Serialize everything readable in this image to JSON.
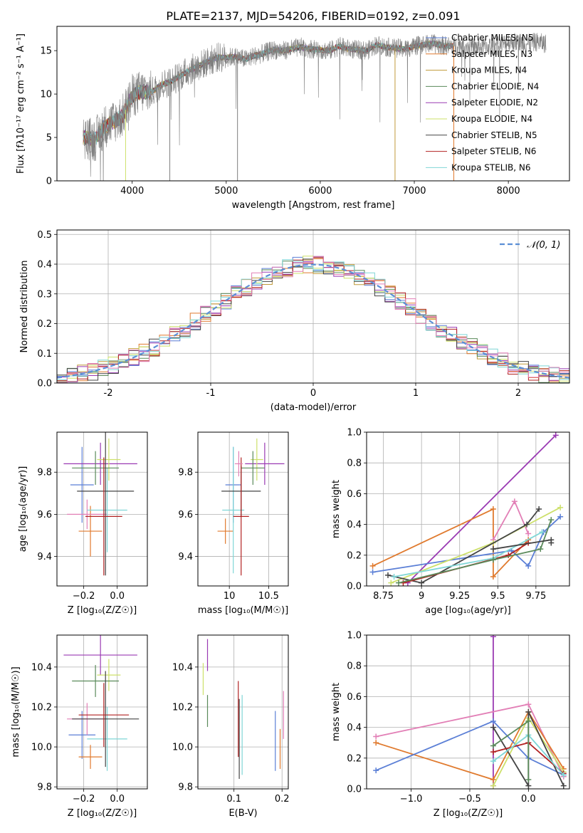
{
  "figure_title": "PLATE=2137, MJD=54206, FIBERID=0192, z=0.091",
  "colors": {
    "chabrier_miles": "#5b7fd6",
    "salpeter_miles": "#e07a2e",
    "kroupa_miles": "#c09a3a",
    "chabrier_elodie": "#5a8a5a",
    "salpeter_elodie": "#9a3ab3",
    "kroupa_elodie": "#cde06a",
    "chabrier_stelib": "#444444",
    "salpeter_stelib": "#b22222",
    "kroupa_stelib": "#7fd6d6",
    "normal_curve": "#5b8fd6",
    "data_spectrum": "#808080",
    "pink": "#e27fb6"
  },
  "chart_data": [
    {
      "id": "spectrum",
      "type": "line",
      "xlabel": "wavelength [Angstrom, rest frame]",
      "ylabel": "Flux [fλ10⁻¹⁷ erg cm⁻² s⁻¹ A⁻¹]",
      "xlim": [
        3200,
        8650
      ],
      "ylim": [
        0,
        17.8
      ],
      "xticks": [
        4000,
        5000,
        6000,
        7000,
        8000
      ],
      "yticks": [
        0,
        5,
        10,
        15
      ],
      "grid": false,
      "legend_position": "top-right",
      "legend": [
        "Chabrier MILES, N_SSP=5",
        "Salpeter MILES, N_SSP=3",
        "Kroupa MILES, N_SSP=4",
        "Chabrier ELODIE, N_SSP=4",
        "Salpeter ELODIE, N_SSP=2",
        "Kroupa ELODIE, N_SSP=4",
        "Chabrier STELIB, N_SSP=5",
        "Salpeter STELIB, N_SSP=6",
        "Kroupa STELIB, N_SSP=6"
      ],
      "data_anchor_points": [
        [
          3500,
          5.0
        ],
        [
          3600,
          4.7
        ],
        [
          3700,
          6.2
        ],
        [
          3800,
          6.8
        ],
        [
          3900,
          7.5
        ],
        [
          4000,
          9.8
        ],
        [
          4100,
          10.3
        ],
        [
          4200,
          10.2
        ],
        [
          4300,
          11.0
        ],
        [
          4400,
          11.4
        ],
        [
          4500,
          12.0
        ],
        [
          4600,
          12.7
        ],
        [
          4700,
          13.2
        ],
        [
          4800,
          13.7
        ],
        [
          4900,
          14.2
        ],
        [
          5000,
          14.2
        ],
        [
          5100,
          14.3
        ],
        [
          5200,
          14.0
        ],
        [
          5300,
          14.4
        ],
        [
          5400,
          14.7
        ],
        [
          5500,
          15.1
        ],
        [
          5600,
          15.0
        ],
        [
          5700,
          15.2
        ],
        [
          5800,
          15.4
        ],
        [
          5900,
          15.2
        ],
        [
          6000,
          15.1
        ],
        [
          6100,
          15.0
        ],
        [
          6200,
          15.5
        ],
        [
          6300,
          15.2
        ],
        [
          6400,
          15.1
        ],
        [
          6500,
          15.0
        ],
        [
          6600,
          15.7
        ],
        [
          6700,
          15.4
        ],
        [
          6800,
          15.3
        ],
        [
          6900,
          15.2
        ],
        [
          7000,
          15.5
        ],
        [
          7100,
          15.7
        ],
        [
          7200,
          15.8
        ],
        [
          7300,
          15.6
        ],
        [
          7400,
          15.5
        ],
        [
          7500,
          15.7
        ],
        [
          7600,
          15.4
        ],
        [
          7700,
          15.4
        ],
        [
          7800,
          15.5
        ],
        [
          7900,
          15.6
        ],
        [
          8000,
          16.0
        ],
        [
          8100,
          16.0
        ],
        [
          8200,
          15.8
        ],
        [
          8300,
          16.0
        ],
        [
          8400,
          15.8
        ]
      ]
    },
    {
      "id": "residuals",
      "type": "histogram",
      "xlabel": "(data-model)/error",
      "ylabel": "Normed distribution",
      "xlim": [
        -2.5,
        2.5
      ],
      "ylim": [
        0,
        0.515
      ],
      "xticks": [
        -2,
        -1,
        0,
        1,
        2
      ],
      "yticks": [
        0.0,
        0.1,
        0.2,
        0.3,
        0.4,
        0.5
      ],
      "grid": true,
      "legend_position": "top-right",
      "legend": [
        "𝒩(0, 1)"
      ],
      "bin_width": 0.1,
      "bin_start": -2.5,
      "normal_curve": {
        "mean": 0,
        "sigma": 1
      }
    },
    {
      "id": "age-vs-Z",
      "type": "errorbar",
      "xlabel": "Z [log₁₀(Z/Z☉)]",
      "ylabel": "age  [log₁₀(age/yr)]",
      "xlim": [
        -0.36,
        0.18
      ],
      "ylim": [
        9.26,
        9.99
      ],
      "xticks": [
        -0.2,
        0.0
      ],
      "xticklabels": [
        "−0.2",
        "0.0"
      ],
      "yticks": [
        9.4,
        9.6,
        9.8
      ],
      "grid": true,
      "points": [
        {
          "x": -0.21,
          "y": 9.74,
          "xerr": 0.07,
          "yerr": 0.18,
          "c": "chabrier_miles"
        },
        {
          "x": -0.16,
          "y": 9.52,
          "xerr": 0.07,
          "yerr": 0.12,
          "c": "salpeter_miles"
        },
        {
          "x": -0.18,
          "y": 9.6,
          "xerr": 0.12,
          "yerr": 0.07,
          "c": "pink"
        },
        {
          "x": -0.06,
          "y": 9.62,
          "xerr": 0.12,
          "yerr": 0.2,
          "c": "kroupa_stelib"
        },
        {
          "x": -0.1,
          "y": 9.84,
          "xerr": 0.22,
          "yerr": 0.1,
          "c": "salpeter_elodie"
        },
        {
          "x": -0.05,
          "y": 9.86,
          "xerr": 0.07,
          "yerr": 0.1,
          "c": "kroupa_elodie"
        },
        {
          "x": -0.13,
          "y": 9.82,
          "xerr": 0.14,
          "yerr": 0.08,
          "c": "chabrier_elodie"
        },
        {
          "x": -0.07,
          "y": 9.71,
          "xerr": 0.17,
          "yerr": 0.4,
          "c": "chabrier_stelib"
        },
        {
          "x": -0.08,
          "y": 9.59,
          "xerr": 0.11,
          "yerr": 0.28,
          "c": "salpeter_stelib"
        }
      ]
    },
    {
      "id": "age-vs-mass",
      "type": "errorbar",
      "xlabel": "mass [log₁₀(M/M☉)]",
      "ylabel": "",
      "xlim": [
        9.6,
        10.75
      ],
      "ylim": [
        9.26,
        9.99
      ],
      "xticks": [
        10.0,
        10.5
      ],
      "yticks": [
        9.4,
        9.6,
        9.8
      ],
      "grid": true,
      "points": [
        {
          "x": 10.05,
          "y": 9.74,
          "xerr": 0.1,
          "yerr": 0.18,
          "c": "chabrier_miles"
        },
        {
          "x": 9.95,
          "y": 9.52,
          "xerr": 0.1,
          "yerr": 0.06,
          "c": "salpeter_miles"
        },
        {
          "x": 10.05,
          "y": 9.62,
          "xerr": 0.14,
          "yerr": 0.3,
          "c": "kroupa_stelib"
        },
        {
          "x": 10.45,
          "y": 9.84,
          "xerr": 0.25,
          "yerr": 0.1,
          "c": "salpeter_elodie"
        },
        {
          "x": 10.35,
          "y": 9.86,
          "xerr": 0.08,
          "yerr": 0.1,
          "c": "kroupa_elodie"
        },
        {
          "x": 10.3,
          "y": 9.82,
          "xerr": 0.15,
          "yerr": 0.08,
          "c": "chabrier_elodie"
        },
        {
          "x": 10.15,
          "y": 9.71,
          "xerr": 0.25,
          "yerr": 0.12,
          "c": "chabrier_stelib"
        },
        {
          "x": 10.15,
          "y": 9.59,
          "xerr": 0.1,
          "yerr": 0.28,
          "c": "salpeter_stelib"
        },
        {
          "x": 10.12,
          "y": 9.84,
          "xerr": 0.05,
          "yerr": 0.06,
          "c": "pink"
        }
      ]
    },
    {
      "id": "massweight-vs-age",
      "type": "line",
      "xlabel": "age  [log₁₀(age/yr)]",
      "ylabel": "mass weight",
      "xlim": [
        8.64,
        9.97
      ],
      "ylim": [
        0,
        1.0
      ],
      "xticks": [
        8.75,
        9.0,
        9.25,
        9.5,
        9.75
      ],
      "yticks": [
        0.0,
        0.2,
        0.4,
        0.6,
        0.8,
        1.0
      ],
      "grid": true,
      "series": [
        {
          "c": "salpeter_elodie",
          "x": [
            8.91,
            9.88
          ],
          "y": [
            0.02,
            0.98
          ]
        },
        {
          "c": "salpeter_miles",
          "x": [
            8.68,
            9.47,
            9.47,
            9.7
          ],
          "y": [
            0.13,
            0.5,
            0.06,
            0.3
          ]
        },
        {
          "c": "pink",
          "x": [
            9.47,
            9.61,
            9.7
          ],
          "y": [
            0.3,
            0.55,
            0.34
          ]
        },
        {
          "c": "chabrier_miles",
          "x": [
            8.68,
            9.59,
            9.7,
            9.8,
            9.91
          ],
          "y": [
            0.09,
            0.23,
            0.13,
            0.35,
            0.45
          ]
        },
        {
          "c": "kroupa_elodie",
          "x": [
            8.8,
            9.47,
            9.91
          ],
          "y": [
            0.02,
            0.28,
            0.51
          ]
        },
        {
          "c": "chabrier_stelib",
          "x": [
            8.78,
            9.0,
            9.69,
            9.77
          ],
          "y": [
            0.07,
            0.02,
            0.4,
            0.5
          ]
        },
        {
          "c": "salpeter_stelib",
          "x": [
            8.88,
            9.57,
            9.7
          ],
          "y": [
            0.02,
            0.2,
            0.28
          ]
        },
        {
          "c": "kroupa_stelib",
          "x": [
            8.82,
            9.47,
            9.79
          ],
          "y": [
            0.06,
            0.18,
            0.35
          ]
        },
        {
          "c": "chabrier_elodie",
          "x": [
            8.85,
            9.47,
            9.78,
            9.85
          ],
          "y": [
            0.02,
            0.17,
            0.24,
            0.43
          ]
        },
        {
          "c": "chabrier_stelib",
          "x": [
            9.47,
            9.85,
            9.85
          ],
          "y": [
            0.24,
            0.3,
            0.28
          ]
        }
      ]
    },
    {
      "id": "mass-vs-Z",
      "type": "errorbar",
      "xlabel": "Z [log₁₀(Z/Z☉)]",
      "ylabel": "mass [log₁₀(M/M☉)]",
      "xlim": [
        -0.36,
        0.18
      ],
      "ylim": [
        9.79,
        10.56
      ],
      "xticks": [
        -0.2,
        0.0
      ],
      "xticklabels": [
        "−0.2",
        "0.0"
      ],
      "yticks": [
        9.8,
        10.0,
        10.2,
        10.4
      ],
      "grid": true,
      "points": [
        {
          "x": -0.21,
          "y": 10.06,
          "xerr": 0.08,
          "yerr": 0.12,
          "c": "chabrier_miles"
        },
        {
          "x": -0.16,
          "y": 9.95,
          "xerr": 0.07,
          "yerr": 0.06,
          "c": "salpeter_miles"
        },
        {
          "x": -0.18,
          "y": 10.14,
          "xerr": 0.12,
          "yerr": 0.08,
          "c": "pink"
        },
        {
          "x": -0.06,
          "y": 10.04,
          "xerr": 0.12,
          "yerr": 0.16,
          "c": "kroupa_stelib"
        },
        {
          "x": -0.1,
          "y": 10.46,
          "xerr": 0.22,
          "yerr": 0.1,
          "c": "salpeter_elodie"
        },
        {
          "x": -0.05,
          "y": 10.36,
          "xerr": 0.07,
          "yerr": 0.08,
          "c": "kroupa_elodie"
        },
        {
          "x": -0.13,
          "y": 10.33,
          "xerr": 0.14,
          "yerr": 0.08,
          "c": "chabrier_elodie"
        },
        {
          "x": -0.07,
          "y": 10.14,
          "xerr": 0.2,
          "yerr": 0.24,
          "c": "chabrier_stelib"
        },
        {
          "x": -0.08,
          "y": 10.16,
          "xerr": 0.15,
          "yerr": 0.16,
          "c": "salpeter_stelib"
        }
      ]
    },
    {
      "id": "mass-vs-EBV",
      "type": "errorbar",
      "xlabel": "E(B-V)",
      "ylabel": "",
      "xlim": [
        0.025,
        0.213
      ],
      "ylim": [
        9.79,
        10.56
      ],
      "xticks": [
        0.1,
        0.2
      ],
      "yticks": [
        9.8,
        10.0,
        10.2,
        10.4
      ],
      "grid": true,
      "points": [
        {
          "x": 0.036,
          "y": 10.34,
          "xerr": 0,
          "yerr": 0.08,
          "c": "kroupa_elodie"
        },
        {
          "x": 0.045,
          "y": 10.46,
          "xerr": 0,
          "yerr": 0.08,
          "c": "salpeter_elodie"
        },
        {
          "x": 0.045,
          "y": 10.18,
          "xerr": 0,
          "yerr": 0.08,
          "c": "chabrier_elodie"
        },
        {
          "x": 0.109,
          "y": 10.14,
          "xerr": 0,
          "yerr": 0.19,
          "c": "salpeter_stelib"
        },
        {
          "x": 0.111,
          "y": 10.04,
          "xerr": 0,
          "yerr": 0.2,
          "c": "chabrier_stelib"
        },
        {
          "x": 0.117,
          "y": 10.06,
          "xerr": 0,
          "yerr": 0.2,
          "c": "kroupa_stelib"
        },
        {
          "x": 0.186,
          "y": 10.03,
          "xerr": 0,
          "yerr": 0.15,
          "c": "chabrier_miles"
        },
        {
          "x": 0.196,
          "y": 9.99,
          "xerr": 0,
          "yerr": 0.1,
          "c": "salpeter_miles"
        },
        {
          "x": 0.203,
          "y": 10.16,
          "xerr": 0,
          "yerr": 0.12,
          "c": "pink"
        }
      ]
    },
    {
      "id": "massweight-vs-Z",
      "type": "line",
      "xlabel": "Z [log₁₀(Z/Z☉)]",
      "ylabel": "mass weight",
      "xlim": [
        -1.38,
        0.35
      ],
      "ylim": [
        0,
        1.0
      ],
      "xticks": [
        -1.0,
        -0.5,
        0.0
      ],
      "xticklabels": [
        "−1.0",
        "−0.5",
        "0.0"
      ],
      "yticks": [
        0.0,
        0.2,
        0.4,
        0.6,
        0.8,
        1.0
      ],
      "grid": true,
      "series": [
        {
          "c": "salpeter_elodie",
          "x": [
            -0.3,
            -0.3
          ],
          "y": [
            0.02,
            0.99
          ]
        },
        {
          "c": "pink",
          "x": [
            -1.3,
            0.0,
            0.3
          ],
          "y": [
            0.34,
            0.55,
            0.08
          ]
        },
        {
          "c": "salpeter_miles",
          "x": [
            -1.3,
            -0.3,
            0.0,
            0.3
          ],
          "y": [
            0.3,
            0.06,
            0.5,
            0.13
          ]
        },
        {
          "c": "chabrier_miles",
          "x": [
            -1.3,
            -0.3,
            0.0,
            0.3
          ],
          "y": [
            0.12,
            0.44,
            0.2,
            0.09
          ]
        },
        {
          "c": "kroupa_elodie",
          "x": [
            -0.3,
            0.0,
            0.3
          ],
          "y": [
            0.02,
            0.46,
            0.11
          ]
        },
        {
          "c": "chabrier_stelib",
          "x": [
            -0.3,
            0.0,
            0.0,
            0.3
          ],
          "y": [
            0.4,
            0.02,
            0.5,
            0.02
          ]
        },
        {
          "c": "salpeter_stelib",
          "x": [
            -0.3,
            0.0,
            0.3
          ],
          "y": [
            0.24,
            0.3,
            0.1
          ]
        },
        {
          "c": "kroupa_stelib",
          "x": [
            -0.3,
            0.0,
            0.3
          ],
          "y": [
            0.18,
            0.35,
            0.09
          ]
        },
        {
          "c": "chabrier_elodie",
          "x": [
            -0.3,
            0.0,
            0.0
          ],
          "y": [
            0.28,
            0.44,
            0.06
          ]
        }
      ]
    }
  ]
}
